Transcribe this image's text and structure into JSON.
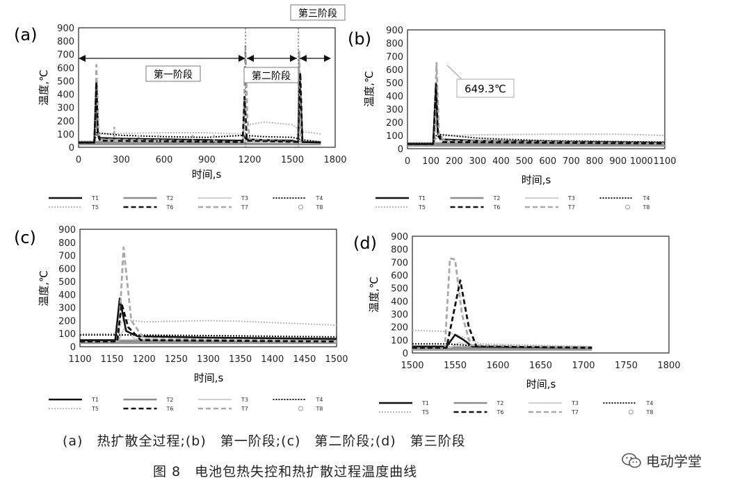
{
  "charts": [
    {
      "panel_label": "(a)",
      "x_ticks": [
        "0",
        "300",
        "600",
        "900",
        "1200",
        "1500",
        "1800"
      ],
      "y_ticks": [
        "0",
        "100",
        "200",
        "300",
        "400",
        "500",
        "600",
        "700",
        "800",
        "900"
      ],
      "xlabel": "时间,s",
      "ylabel": "温度,℃",
      "annotations": {
        "stage3": "第三阶段",
        "stage1": "第一阶段",
        "stage2": "第二阶段"
      }
    },
    {
      "panel_label": "(b)",
      "x_ticks": [
        "0",
        "100",
        "200",
        "300",
        "400",
        "500",
        "600",
        "700",
        "800",
        "900",
        "1000",
        "1100"
      ],
      "y_ticks": [
        "0",
        "100",
        "200",
        "300",
        "400",
        "500",
        "600",
        "700",
        "800",
        "900"
      ],
      "xlabel": "时间,s",
      "ylabel": "温度,℃",
      "annotations": {
        "peak": "649.3℃"
      }
    },
    {
      "panel_label": "(c)",
      "x_ticks": [
        "1100",
        "1150",
        "1200",
        "1250",
        "1300",
        "1350",
        "1400",
        "1450",
        "1500"
      ],
      "y_ticks": [
        "0",
        "100",
        "200",
        "300",
        "400",
        "500",
        "600",
        "700",
        "800",
        "900"
      ],
      "xlabel": "时间,s",
      "ylabel": "温度,℃"
    },
    {
      "panel_label": "(d)",
      "x_ticks": [
        "1500",
        "1550",
        "1600",
        "1650",
        "1700",
        "1750",
        "1800"
      ],
      "y_ticks": [
        "0",
        "100",
        "200",
        "300",
        "400",
        "500",
        "600",
        "700",
        "800",
        "900"
      ],
      "xlabel": "时间,s",
      "ylabel": "温度,℃"
    }
  ],
  "legend": [
    "T1",
    "T2",
    "T3",
    "T4",
    "T5",
    "T6",
    "T7",
    "T8"
  ],
  "legend_colors": {
    "T1": "#111111",
    "T2": "#8c8c8c",
    "T3": "#cfcfcf",
    "T4": "#111111",
    "T5": "#b5b5b5",
    "T6": "#111111",
    "T7": "#a8a8a8",
    "T8": "#9a9a9a"
  },
  "caption": "(a)　热扩散全过程;(b)　第一阶段;(c)　第二阶段;(d)　第三阶段",
  "figure_title": "图 8　电池包热失控和热扩散过程温度曲线",
  "watermark": "电动学堂",
  "chart_data": [
    {
      "type": "line",
      "xlim": [
        0,
        1800
      ],
      "ylim": [
        0,
        900
      ],
      "series": [
        {
          "name": "T1",
          "x": [
            0,
            110,
            125,
            135,
            150,
            300,
            600,
            900,
            1150,
            1160,
            1180,
            1300,
            1500,
            1540,
            1550,
            1570,
            1700
          ],
          "y": [
            35,
            35,
            500,
            100,
            70,
            65,
            60,
            55,
            50,
            80,
            60,
            55,
            50,
            40,
            560,
            40,
            35
          ]
        },
        {
          "name": "T2",
          "x": [
            0,
            1700
          ],
          "y": [
            35,
            30
          ]
        },
        {
          "name": "T3",
          "x": [
            0,
            110,
            125,
            140,
            300,
            1160,
            1200,
            1500,
            1700
          ],
          "y": [
            35,
            35,
            200,
            60,
            45,
            45,
            40,
            35,
            30
          ]
        },
        {
          "name": "T4",
          "x": [
            0,
            110,
            125,
            300,
            600,
            900,
            1160,
            1300,
            1500,
            1550,
            1700
          ],
          "y": [
            40,
            40,
            110,
            90,
            80,
            75,
            90,
            80,
            75,
            60,
            40
          ]
        },
        {
          "name": "T5",
          "x": [
            0,
            110,
            130,
            300,
            600,
            900,
            1150,
            1170,
            1200,
            1300,
            1500,
            1560,
            1700
          ],
          "y": [
            40,
            40,
            100,
            105,
            110,
            110,
            100,
            200,
            170,
            190,
            170,
            120,
            100
          ]
        },
        {
          "name": "T6",
          "x": [
            0,
            110,
            125,
            135,
            150,
            1150,
            1165,
            1180,
            1540,
            1555,
            1570
          ],
          "y": [
            35,
            35,
            490,
            100,
            50,
            40,
            380,
            50,
            40,
            560,
            40
          ]
        },
        {
          "name": "T7",
          "x": [
            0,
            115,
            125,
            140,
            160,
            1155,
            1170,
            1185,
            1200,
            1540,
            1548,
            1560
          ],
          "y": [
            35,
            35,
            620,
            100,
            60,
            40,
            760,
            200,
            60,
            40,
            720,
            40
          ]
        },
        {
          "name": "T8",
          "x": [
            0,
            1700
          ],
          "y": [
            32,
            32
          ]
        }
      ],
      "stage_boundaries": [
        1160,
        1540
      ],
      "spikes_T7": [
        [
          250,
          160
        ],
        [
          420,
          100
        ],
        [
          560,
          100
        ],
        [
          800,
          100
        ],
        [
          950,
          100
        ]
      ]
    },
    {
      "type": "line",
      "xlim": [
        0,
        1100
      ],
      "ylim": [
        0,
        900
      ],
      "series": [
        {
          "name": "T1",
          "x": [
            0,
            110,
            122,
            130,
            150,
            300,
            1100
          ],
          "y": [
            35,
            35,
            500,
            120,
            70,
            60,
            45
          ]
        },
        {
          "name": "T2",
          "x": [
            0,
            1100
          ],
          "y": [
            35,
            35
          ]
        },
        {
          "name": "T3",
          "x": [
            0,
            110,
            122,
            140,
            1100
          ],
          "y": [
            35,
            35,
            200,
            60,
            40
          ]
        },
        {
          "name": "T4",
          "x": [
            0,
            110,
            125,
            300,
            600,
            1100
          ],
          "y": [
            40,
            40,
            110,
            80,
            60,
            50
          ]
        },
        {
          "name": "T5",
          "x": [
            0,
            110,
            130,
            300,
            600,
            900,
            1100
          ],
          "y": [
            40,
            40,
            95,
            105,
            110,
            110,
            100
          ]
        },
        {
          "name": "T6",
          "x": [
            0,
            110,
            122,
            130,
            150,
            1100
          ],
          "y": [
            35,
            35,
            490,
            100,
            50,
            40
          ]
        },
        {
          "name": "T7",
          "x": [
            0,
            115,
            124,
            135,
            160,
            1100
          ],
          "y": [
            35,
            35,
            649.3,
            100,
            60,
            40
          ]
        },
        {
          "name": "T8",
          "x": [
            0,
            1100
          ],
          "y": [
            32,
            32
          ]
        }
      ]
    },
    {
      "type": "line",
      "xlim": [
        1100,
        1500
      ],
      "ylim": [
        0,
        900
      ],
      "series": [
        {
          "name": "T1",
          "x": [
            1100,
            1155,
            1162,
            1172,
            1190,
            1300,
            1500
          ],
          "y": [
            50,
            50,
            370,
            120,
            80,
            70,
            60
          ]
        },
        {
          "name": "T2",
          "x": [
            1100,
            1500
          ],
          "y": [
            40,
            40
          ]
        },
        {
          "name": "T3",
          "x": [
            1100,
            1160,
            1170,
            1185,
            1500
          ],
          "y": [
            45,
            45,
            150,
            60,
            40
          ]
        },
        {
          "name": "T4",
          "x": [
            1100,
            1160,
            1180,
            1300,
            1500
          ],
          "y": [
            90,
            90,
            90,
            85,
            75
          ]
        },
        {
          "name": "T5",
          "x": [
            1100,
            1155,
            1168,
            1200,
            1250,
            1300,
            1350,
            1400,
            1450,
            1500
          ],
          "y": [
            100,
            100,
            210,
            190,
            195,
            200,
            195,
            185,
            175,
            165
          ]
        },
        {
          "name": "T6",
          "x": [
            1100,
            1158,
            1165,
            1175,
            1195,
            1500
          ],
          "y": [
            40,
            40,
            330,
            150,
            50,
            40
          ]
        },
        {
          "name": "T7",
          "x": [
            1100,
            1160,
            1168,
            1180,
            1200,
            1500
          ],
          "y": [
            40,
            40,
            760,
            200,
            60,
            45
          ]
        },
        {
          "name": "T8",
          "x": [
            1100,
            1500
          ],
          "y": [
            38,
            38
          ]
        }
      ]
    },
    {
      "type": "line",
      "xlim": [
        1500,
        1800
      ],
      "ylim": [
        0,
        900
      ],
      "series": [
        {
          "name": "T1",
          "x": [
            1500,
            1540,
            1550,
            1560,
            1570,
            1710
          ],
          "y": [
            50,
            50,
            140,
            100,
            50,
            40
          ]
        },
        {
          "name": "T2",
          "x": [
            1500,
            1710
          ],
          "y": [
            40,
            35
          ]
        },
        {
          "name": "T3",
          "x": [
            1500,
            1545,
            1555,
            1570,
            1710
          ],
          "y": [
            45,
            45,
            80,
            50,
            40
          ]
        },
        {
          "name": "T4",
          "x": [
            1500,
            1540,
            1560,
            1580,
            1710
          ],
          "y": [
            70,
            70,
            60,
            50,
            40
          ]
        },
        {
          "name": "T5",
          "x": [
            1500,
            1540,
            1560,
            1580,
            1710
          ],
          "y": [
            175,
            165,
            120,
            70,
            50
          ]
        },
        {
          "name": "T6",
          "x": [
            1500,
            1540,
            1548,
            1556,
            1566,
            1575,
            1710
          ],
          "y": [
            40,
            40,
            300,
            560,
            200,
            50,
            40
          ]
        },
        {
          "name": "T7",
          "x": [
            1500,
            1538,
            1544,
            1550,
            1558,
            1568,
            1710
          ],
          "y": [
            40,
            40,
            730,
            720,
            300,
            60,
            40
          ]
        },
        {
          "name": "T8",
          "x": [
            1500,
            1710
          ],
          "y": [
            35,
            35
          ]
        }
      ]
    }
  ]
}
